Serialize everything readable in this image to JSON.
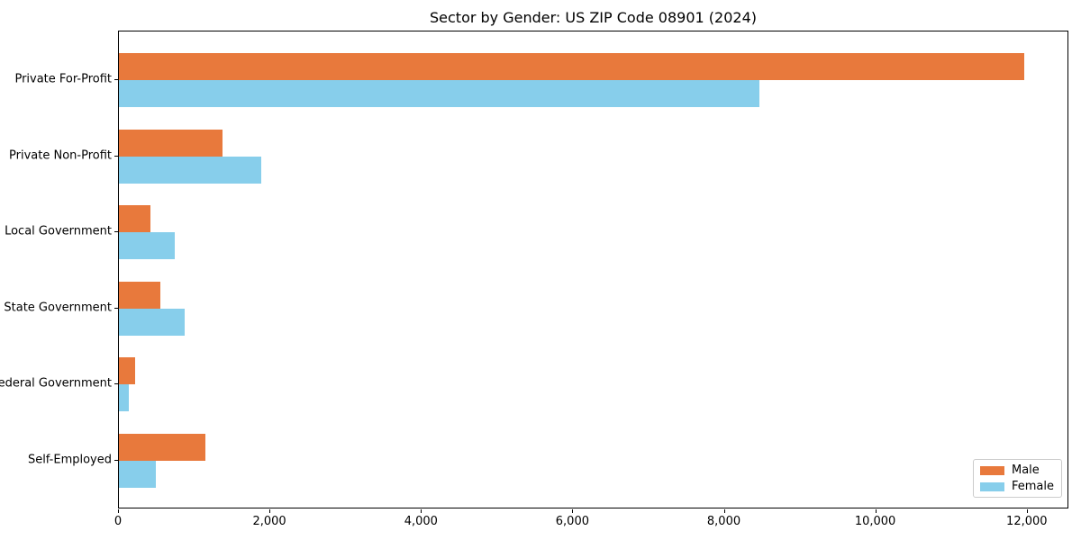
{
  "title": "Sector by Gender: US ZIP Code 08901 (2024)",
  "colors": {
    "male": "#E8793C",
    "female": "#87CEEB",
    "axis": "#000000",
    "background": "#FFFFFF",
    "legend_border": "#CCCCCC"
  },
  "legend": {
    "position": "lower right",
    "items": [
      {
        "label": "Male",
        "color": "#E8793C"
      },
      {
        "label": "Female",
        "color": "#87CEEB"
      }
    ]
  },
  "chart_data": {
    "type": "bar",
    "orientation": "horizontal",
    "title": "Sector by Gender: US ZIP Code 08901 (2024)",
    "categories": [
      "Private For-Profit",
      "Private Non-Profit",
      "Local Government",
      "State Government",
      "Federal Government",
      "Self-Employed"
    ],
    "series": [
      {
        "name": "Male",
        "color": "#E8793C",
        "values": [
          11950,
          1370,
          420,
          550,
          210,
          1140
        ]
      },
      {
        "name": "Female",
        "color": "#87CEEB",
        "values": [
          8460,
          1880,
          740,
          870,
          130,
          490
        ]
      }
    ],
    "xlabel": "",
    "ylabel": "",
    "xlim": [
      0,
      12550
    ],
    "x_ticks": [
      0,
      2000,
      4000,
      6000,
      8000,
      10000,
      12000
    ],
    "x_tick_labels": [
      "0",
      "2,000",
      "4,000",
      "6,000",
      "8,000",
      "10,000",
      "12,000"
    ],
    "grid": false,
    "legend_position": "lower right"
  }
}
